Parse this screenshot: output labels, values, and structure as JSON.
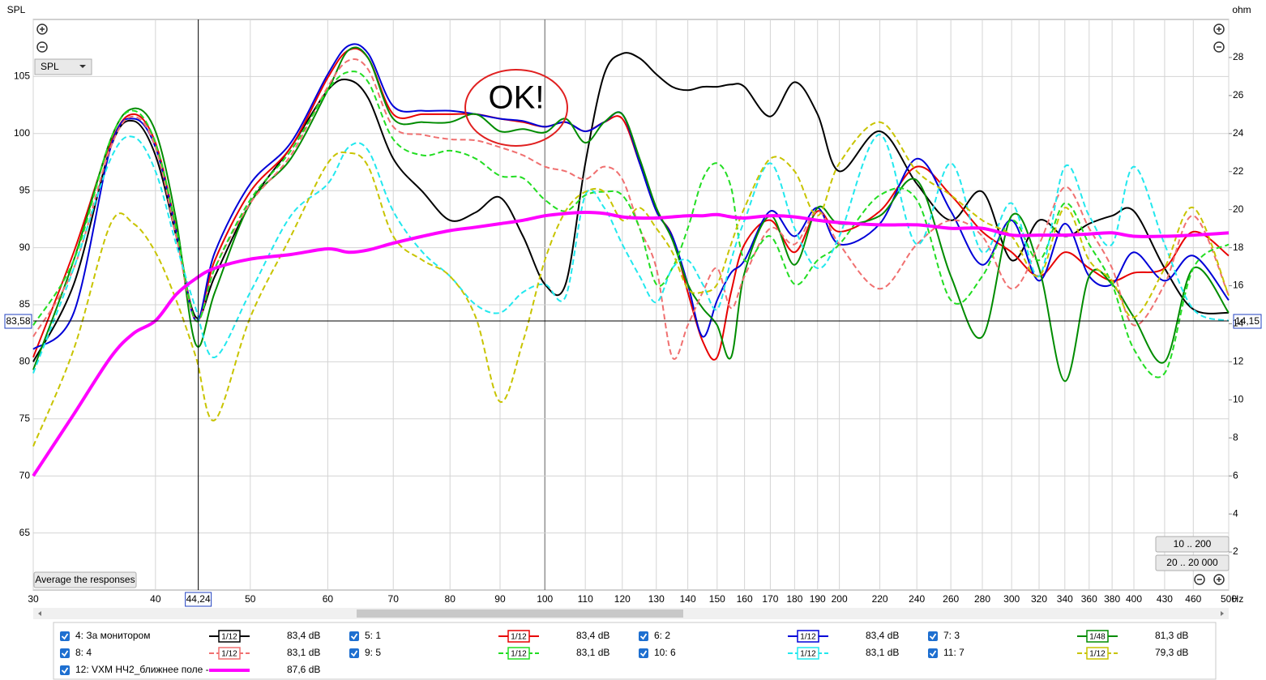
{
  "chart_data": {
    "type": "line",
    "y_label": "SPL",
    "y2_label": "ohm",
    "x_label": "Hz",
    "xscale": "log",
    "xlim": [
      30,
      500
    ],
    "ylim": [
      60,
      110
    ],
    "y2lim": [
      0,
      30
    ],
    "xticks": [
      30,
      40,
      50,
      60,
      70,
      80,
      90,
      100,
      110,
      120,
      130,
      140,
      150,
      160,
      170,
      180,
      190,
      200,
      220,
      240,
      260,
      280,
      300,
      320,
      340,
      360,
      380,
      400,
      430,
      460,
      500
    ],
    "yticks": [
      65,
      70,
      75,
      80,
      85,
      90,
      95,
      100,
      105
    ],
    "y2ticks": [
      2,
      4,
      6,
      8,
      10,
      12,
      14,
      16,
      18,
      20,
      22,
      24,
      26,
      28
    ],
    "grid": true,
    "x": [
      30,
      33,
      36,
      38,
      40,
      42,
      44,
      46,
      50,
      55,
      60,
      63,
      66,
      70,
      75,
      80,
      85,
      90,
      95,
      100,
      105,
      110,
      115,
      120,
      125,
      130,
      135,
      140,
      145,
      150,
      155,
      160,
      170,
      180,
      190,
      200,
      220,
      240,
      260,
      280,
      300,
      320,
      340,
      360,
      380,
      400,
      430,
      460,
      500
    ],
    "series": [
      {
        "name": "4: За монитором",
        "color": "#000000",
        "smoothing": "1/12",
        "level": "83,4 dB",
        "values": [
          80.0,
          86.8,
          98.8,
          101.1,
          98.1,
          91.0,
          83.9,
          87.5,
          93.9,
          98.8,
          103.8,
          104.7,
          103.1,
          97.8,
          94.9,
          92.4,
          93.1,
          94.4,
          91.0,
          86.8,
          86.8,
          97.4,
          105.2,
          107.0,
          106.6,
          105.2,
          104.1,
          103.8,
          104.1,
          104.1,
          104.3,
          104.1,
          101.5,
          104.5,
          101.7,
          96.7,
          100.2,
          95.6,
          92.4,
          94.9,
          88.9,
          92.4,
          91.0,
          92.1,
          92.8,
          93.2,
          88.2,
          84.6,
          84.3
        ]
      },
      {
        "name": "5: 1",
        "color": "#e80000",
        "smoothing": "1/12",
        "level": "83,4 dB",
        "values": [
          80.4,
          89.6,
          99.2,
          101.7,
          99.2,
          91.7,
          83.6,
          88.9,
          94.9,
          98.8,
          104.9,
          107.3,
          106.6,
          101.7,
          101.7,
          101.7,
          101.7,
          101.3,
          101.0,
          100.6,
          101.0,
          100.2,
          101.0,
          101.3,
          97.4,
          93.2,
          91.0,
          86.1,
          81.8,
          80.4,
          86.1,
          90.3,
          92.4,
          89.6,
          93.2,
          91.4,
          93.2,
          97.1,
          94.6,
          91.4,
          89.6,
          87.5,
          89.6,
          88.2,
          87.1,
          87.8,
          88.2,
          91.4,
          89.3
        ]
      },
      {
        "name": "6: 2",
        "color": "#0000d8",
        "smoothing": "1/12",
        "level": "83,4 dB",
        "values": [
          81.1,
          84.3,
          98.8,
          101.3,
          98.8,
          91.4,
          83.6,
          89.6,
          95.6,
          99.2,
          105.2,
          107.7,
          107.0,
          102.4,
          102.0,
          102.0,
          101.7,
          101.3,
          101.1,
          100.6,
          101.0,
          100.2,
          101.0,
          101.7,
          97.4,
          93.2,
          91.0,
          86.8,
          82.2,
          85.4,
          87.8,
          88.9,
          93.2,
          91.0,
          93.5,
          90.3,
          92.1,
          97.8,
          93.2,
          88.5,
          92.4,
          87.1,
          92.1,
          87.5,
          86.8,
          89.6,
          87.1,
          89.3,
          85.4
        ]
      },
      {
        "name": "7: 3",
        "color": "#008c00",
        "smoothing": "1/48",
        "level": "81,3 dB",
        "values": [
          79.3,
          88.9,
          99.5,
          102.2,
          100.2,
          92.4,
          81.5,
          86.1,
          93.9,
          97.8,
          103.8,
          107.3,
          106.6,
          101.3,
          101.0,
          101.0,
          101.7,
          100.2,
          100.4,
          100.1,
          101.3,
          99.2,
          101.0,
          101.7,
          97.8,
          93.5,
          90.7,
          86.8,
          84.7,
          83.2,
          80.4,
          87.8,
          92.8,
          88.5,
          93.5,
          92.1,
          92.8,
          95.9,
          87.5,
          82.2,
          92.8,
          88.2,
          78.3,
          87.5,
          86.8,
          83.9,
          80.0,
          88.2,
          84.3
        ]
      },
      {
        "name": "8: 4",
        "color": "#f07070",
        "dash": true,
        "smoothing": "1/12",
        "level": "83,1 dB",
        "values": [
          82.2,
          88.2,
          98.8,
          101.5,
          98.8,
          91.0,
          83.6,
          88.2,
          93.9,
          98.1,
          104.1,
          106.4,
          105.6,
          100.6,
          99.9,
          99.5,
          99.4,
          98.8,
          98.1,
          97.1,
          96.7,
          96.0,
          97.1,
          96.0,
          91.7,
          88.2,
          80.4,
          83.2,
          86.1,
          88.2,
          84.7,
          87.5,
          91.7,
          90.3,
          93.2,
          90.3,
          86.4,
          90.3,
          92.4,
          91.0,
          86.4,
          90.3,
          95.3,
          91.7,
          88.2,
          83.2,
          86.8,
          92.8,
          85.8
        ]
      },
      {
        "name": "9: 5",
        "color": "#22dd22",
        "dash": true,
        "smoothing": "1/12",
        "level": "83,1 dB",
        "values": [
          83.2,
          88.9,
          99.5,
          102.0,
          99.2,
          91.7,
          83.6,
          88.2,
          94.2,
          98.5,
          103.8,
          105.4,
          104.5,
          99.5,
          98.1,
          98.5,
          97.8,
          96.3,
          96.1,
          94.2,
          93.2,
          94.6,
          94.9,
          94.6,
          91.7,
          86.8,
          88.2,
          91.7,
          96.0,
          97.4,
          95.3,
          88.9,
          91.0,
          86.8,
          88.9,
          90.3,
          94.6,
          94.2,
          85.4,
          87.5,
          92.4,
          88.9,
          93.9,
          90.3,
          86.8,
          81.1,
          79.0,
          88.2,
          90.3
        ]
      },
      {
        "name": "10: 6",
        "color": "#22e8ee",
        "dash": true,
        "smoothing": "1/12",
        "level": "83,1 dB",
        "values": [
          79.0,
          88.2,
          97.8,
          99.7,
          96.7,
          90.3,
          84.6,
          80.4,
          86.1,
          92.8,
          95.6,
          98.8,
          98.5,
          93.2,
          89.6,
          87.5,
          85.0,
          84.3,
          86.1,
          86.8,
          85.7,
          94.6,
          93.5,
          90.3,
          87.5,
          85.2,
          88.2,
          88.9,
          86.8,
          84.6,
          88.9,
          92.4,
          97.4,
          91.7,
          88.2,
          91.0,
          99.9,
          90.3,
          97.4,
          89.6,
          93.9,
          87.5,
          97.1,
          92.8,
          90.3,
          97.1,
          90.3,
          84.6,
          83.6
        ]
      },
      {
        "name": "11: 7",
        "color": "#c8c400",
        "dash": true,
        "smoothing": "1/12",
        "level": "79,3 dB",
        "values": [
          72.6,
          81.1,
          92.1,
          92.1,
          89.6,
          85.4,
          80.4,
          74.9,
          83.9,
          91.0,
          97.4,
          98.3,
          97.1,
          91.0,
          88.9,
          87.5,
          83.9,
          76.5,
          81.8,
          88.9,
          93.2,
          94.9,
          94.9,
          92.4,
          93.5,
          91.7,
          89.6,
          86.4,
          86.1,
          86.8,
          90.3,
          93.5,
          97.8,
          96.7,
          92.8,
          97.4,
          101.0,
          96.7,
          94.6,
          92.4,
          91.0,
          87.5,
          93.5,
          88.9,
          87.1,
          83.9,
          88.2,
          93.5,
          85.8
        ]
      },
      {
        "name": "12: VXM НЧ2_ближнее поле -",
        "color": "#ff00ff",
        "width": 4,
        "level": "87,6 dB",
        "values": [
          70.0,
          75.4,
          80.4,
          82.5,
          83.6,
          85.9,
          87.3,
          88.2,
          89.0,
          89.4,
          89.9,
          89.6,
          89.8,
          90.4,
          91.0,
          91.5,
          91.8,
          92.1,
          92.4,
          92.8,
          93.0,
          93.1,
          93.0,
          92.7,
          92.6,
          92.6,
          92.7,
          92.8,
          92.8,
          92.9,
          92.7,
          92.6,
          92.8,
          92.7,
          92.4,
          92.2,
          92.0,
          92.0,
          91.7,
          91.7,
          91.1,
          91.1,
          91.1,
          91.2,
          91.3,
          91.0,
          91.0,
          91.1,
          91.3
        ]
      }
    ],
    "cursor": {
      "x": {
        "value": 44.24,
        "label": "44,24"
      },
      "y": {
        "value": 83.58,
        "label": "83,58"
      },
      "y2": {
        "value": 14.15,
        "label": "14,15"
      }
    },
    "annotation": "OK!",
    "dropdown": "SPL",
    "buttons": [
      "10 .. 200",
      "20 .. 20 000",
      "Average the responses"
    ]
  }
}
